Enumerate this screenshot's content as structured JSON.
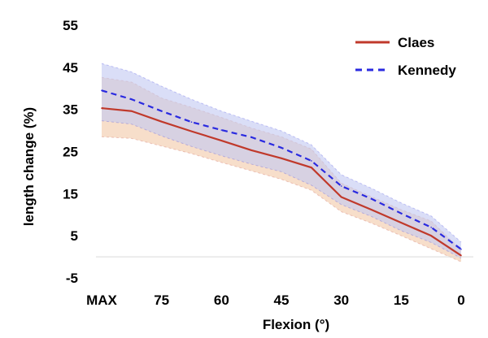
{
  "chart_data": {
    "type": "line",
    "xlabel": "Flexion (°)",
    "ylabel": "length change (%)",
    "ylim": [
      -5,
      55
    ],
    "yticks": [
      -5,
      5,
      15,
      25,
      35,
      45,
      55
    ],
    "x": [
      "MAX",
      "",
      "75",
      "",
      "60",
      "",
      "45",
      "",
      "30",
      "",
      "15",
      "",
      "0"
    ],
    "xtick_labels": [
      "MAX",
      "75",
      "60",
      "45",
      "30",
      "15",
      "0"
    ],
    "grid": false,
    "zero_line": true,
    "legend_position": "top-right",
    "series": [
      {
        "name": "Claes",
        "color": "#c0392b",
        "band_color": "#f2c8a6",
        "line_style": "solid",
        "values": [
          35.3,
          34.6,
          32.1,
          29.8,
          27.6,
          25.3,
          23.4,
          21.2,
          14.2,
          11.2,
          8.1,
          5.0,
          0.3
        ],
        "upper": [
          42.6,
          41.5,
          37.7,
          35.5,
          33.1,
          30.6,
          28.5,
          25.6,
          17.5,
          14.3,
          11.2,
          8.5,
          1.6
        ],
        "lower": [
          28.5,
          28.1,
          26.3,
          24.5,
          22.4,
          20.4,
          18.4,
          15.8,
          10.7,
          8.0,
          5.0,
          1.9,
          -1.2
        ]
      },
      {
        "name": "Kennedy",
        "color": "#2a2ae0",
        "band_color": "#c2c8f2",
        "line_style": "dashed",
        "values": [
          39.5,
          37.4,
          34.6,
          32.0,
          30.1,
          28.4,
          25.9,
          22.8,
          16.8,
          13.8,
          10.3,
          7.0,
          1.8
        ],
        "upper": [
          45.9,
          43.9,
          40.5,
          37.4,
          34.6,
          32.2,
          29.9,
          26.6,
          19.5,
          16.3,
          12.8,
          9.7,
          3.5
        ],
        "lower": [
          32.3,
          31.5,
          28.7,
          26.2,
          24.0,
          22.0,
          20.2,
          17.0,
          12.4,
          9.6,
          6.2,
          3.4,
          -0.3
        ]
      }
    ]
  }
}
